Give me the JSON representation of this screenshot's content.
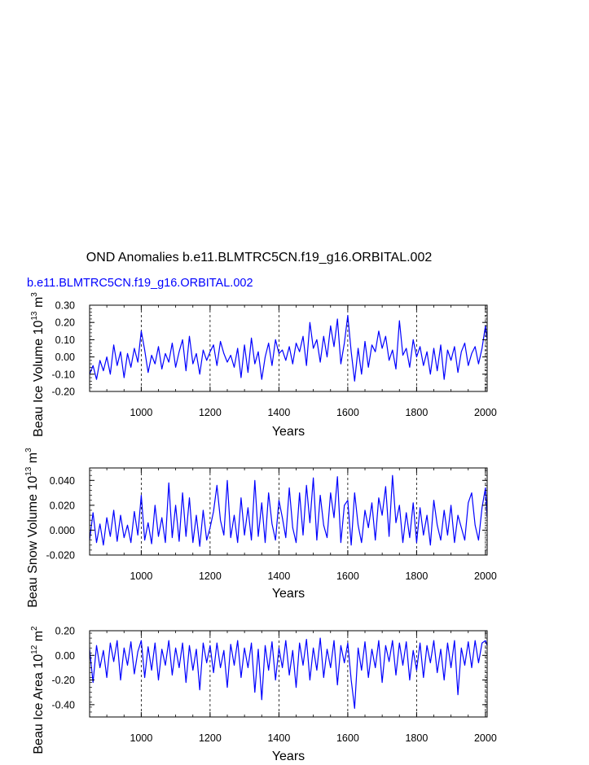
{
  "figure": {
    "title": "OND Anomalies b.e11.BLMTRC5CN.f19_g16.ORBITAL.002",
    "subtitle": "b.e11.BLMTRC5CN.f19_g16.ORBITAL.002",
    "subtitle_color": "#0000ff",
    "series_color": "#0000ff"
  },
  "chart_data": [
    {
      "type": "line",
      "title": "",
      "xlabel": "Years",
      "ylabel": "Beau Ice Volume 10^13 m^3",
      "ylabel_base": "Beau Ice Volume 10",
      "ylabel_exp": "13",
      "ylabel_unit": "m",
      "ylabel_unit_exp": "3",
      "xlim": [
        850,
        2005
      ],
      "ylim": [
        -0.2,
        0.3
      ],
      "xticks": [
        1000,
        1200,
        1400,
        1600,
        1800,
        2000
      ],
      "xtick_labels": [
        "1000",
        "1200",
        "1400",
        "1600",
        "1800",
        "2000"
      ],
      "yticks": [
        -0.2,
        -0.1,
        0.0,
        0.1,
        0.2,
        0.3
      ],
      "ytick_labels": [
        "-0.20",
        "-0.10",
        "0.00",
        "0.10",
        "0.20",
        "0.30"
      ],
      "grid": "dashed vertical lines at major x ticks",
      "series": [
        {
          "x": [
            850,
            860,
            870,
            880,
            890,
            900,
            910,
            920,
            930,
            940,
            950,
            960,
            970,
            980,
            990,
            1000,
            1010,
            1020,
            1030,
            1040,
            1050,
            1060,
            1070,
            1080,
            1090,
            1100,
            1110,
            1120,
            1130,
            1140,
            1150,
            1160,
            1170,
            1180,
            1190,
            1200,
            1210,
            1220,
            1230,
            1240,
            1250,
            1260,
            1270,
            1280,
            1290,
            1300,
            1310,
            1320,
            1330,
            1340,
            1350,
            1360,
            1370,
            1380,
            1390,
            1400,
            1410,
            1420,
            1430,
            1440,
            1450,
            1460,
            1470,
            1480,
            1490,
            1500,
            1510,
            1520,
            1530,
            1540,
            1550,
            1560,
            1570,
            1580,
            1590,
            1600,
            1610,
            1620,
            1630,
            1640,
            1650,
            1660,
            1670,
            1680,
            1690,
            1700,
            1710,
            1720,
            1730,
            1740,
            1750,
            1760,
            1770,
            1780,
            1790,
            1800,
            1810,
            1820,
            1830,
            1840,
            1850,
            1860,
            1870,
            1880,
            1890,
            1900,
            1910,
            1920,
            1930,
            1940,
            1950,
            1960,
            1970,
            1980,
            1990,
            2000,
            2005
          ],
          "y": [
            -0.1,
            -0.05,
            -0.13,
            -0.02,
            -0.08,
            0.0,
            -0.1,
            0.07,
            -0.05,
            0.03,
            -0.12,
            0.02,
            -0.06,
            0.05,
            -0.03,
            0.15,
            0.04,
            -0.09,
            0.01,
            -0.04,
            0.06,
            -0.07,
            0.02,
            -0.03,
            0.08,
            -0.06,
            0.03,
            0.1,
            -0.08,
            0.12,
            -0.04,
            0.02,
            -0.1,
            0.04,
            -0.02,
            0.03,
            0.07,
            -0.05,
            0.09,
            0.02,
            -0.03,
            0.01,
            -0.06,
            0.05,
            -0.12,
            0.07,
            -0.09,
            0.11,
            -0.04,
            0.03,
            -0.13,
            0.0,
            0.08,
            -0.05,
            0.1,
            0.02,
            0.04,
            -0.02,
            0.06,
            -0.04,
            0.08,
            0.03,
            0.12,
            -0.05,
            0.2,
            0.05,
            0.1,
            -0.03,
            0.12,
            0.0,
            0.18,
            0.06,
            0.22,
            -0.04,
            0.08,
            0.24,
            0.03,
            -0.14,
            0.05,
            -0.1,
            0.09,
            -0.06,
            0.07,
            0.03,
            0.15,
            0.05,
            0.12,
            -0.02,
            0.04,
            -0.07,
            0.21,
            0.01,
            0.05,
            -0.06,
            0.1,
            0.0,
            0.06,
            -0.05,
            0.03,
            -0.1,
            0.05,
            -0.08,
            0.07,
            -0.13,
            0.04,
            -0.02,
            0.06,
            -0.09,
            0.03,
            0.08,
            -0.05,
            0.02,
            0.06,
            -0.04,
            0.05,
            0.18,
            0.1
          ]
        }
      ]
    },
    {
      "type": "line",
      "title": "",
      "xlabel": "Years",
      "ylabel": "Beau Snow Volume 10^13 m^3",
      "ylabel_base": "Beau Snow Volume 10",
      "ylabel_exp": "13",
      "ylabel_unit": "m",
      "ylabel_unit_exp": "3",
      "xlim": [
        850,
        2005
      ],
      "ylim": [
        -0.02,
        0.05
      ],
      "xticks": [
        1000,
        1200,
        1400,
        1600,
        1800,
        2000
      ],
      "xtick_labels": [
        "1000",
        "1200",
        "1400",
        "1600",
        "1800",
        "2000"
      ],
      "yticks": [
        -0.02,
        0.0,
        0.02,
        0.04
      ],
      "ytick_labels": [
        "-0.020",
        "0.000",
        "0.020",
        "0.040"
      ],
      "grid": "dashed vertical lines at major x ticks",
      "series": [
        {
          "x": [
            850,
            860,
            870,
            880,
            890,
            900,
            910,
            920,
            930,
            940,
            950,
            960,
            970,
            980,
            990,
            1000,
            1010,
            1020,
            1030,
            1040,
            1050,
            1060,
            1070,
            1080,
            1090,
            1100,
            1110,
            1120,
            1130,
            1140,
            1150,
            1160,
            1170,
            1180,
            1190,
            1200,
            1210,
            1220,
            1230,
            1240,
            1250,
            1260,
            1270,
            1280,
            1290,
            1300,
            1310,
            1320,
            1330,
            1340,
            1350,
            1360,
            1370,
            1380,
            1390,
            1400,
            1410,
            1420,
            1430,
            1440,
            1450,
            1460,
            1470,
            1480,
            1490,
            1500,
            1510,
            1520,
            1530,
            1540,
            1550,
            1560,
            1570,
            1580,
            1590,
            1600,
            1610,
            1620,
            1630,
            1640,
            1650,
            1660,
            1670,
            1680,
            1690,
            1700,
            1710,
            1720,
            1730,
            1740,
            1750,
            1760,
            1770,
            1780,
            1790,
            1800,
            1810,
            1820,
            1830,
            1840,
            1850,
            1860,
            1870,
            1880,
            1890,
            1900,
            1910,
            1920,
            1930,
            1940,
            1950,
            1960,
            1970,
            1980,
            1990,
            2000,
            2005
          ],
          "y": [
            -0.008,
            0.014,
            -0.01,
            0.005,
            -0.012,
            0.01,
            -0.005,
            0.016,
            -0.009,
            0.012,
            -0.006,
            0.004,
            -0.01,
            0.015,
            -0.004,
            0.028,
            -0.008,
            0.006,
            -0.011,
            0.02,
            -0.005,
            0.01,
            -0.01,
            0.038,
            -0.006,
            0.02,
            -0.009,
            0.03,
            -0.005,
            0.026,
            -0.01,
            0.012,
            -0.013,
            0.016,
            -0.008,
            0.002,
            0.015,
            0.036,
            0.008,
            -0.004,
            0.04,
            -0.006,
            0.012,
            -0.01,
            0.026,
            -0.004,
            0.018,
            -0.008,
            0.04,
            -0.005,
            0.022,
            -0.01,
            0.03,
            0.005,
            -0.008,
            0.024,
            0.01,
            -0.006,
            0.034,
            0.002,
            -0.01,
            0.03,
            -0.004,
            0.036,
            0.006,
            0.042,
            -0.008,
            0.028,
            0.004,
            -0.006,
            0.03,
            0.01,
            0.043,
            -0.01,
            0.02,
            0.024,
            -0.012,
            0.03,
            0.004,
            -0.01,
            0.016,
            0.002,
            0.022,
            -0.008,
            0.026,
            0.012,
            0.035,
            -0.005,
            0.044,
            0.006,
            0.02,
            -0.01,
            0.014,
            -0.006,
            0.022,
            -0.01,
            0.018,
            -0.004,
            0.012,
            -0.012,
            0.024,
            0.004,
            -0.008,
            0.016,
            -0.004,
            0.02,
            -0.01,
            0.012,
            0.002,
            -0.008,
            0.022,
            0.03,
            0.004,
            -0.008,
            0.018,
            0.034,
            0.01
          ]
        }
      ]
    },
    {
      "type": "line",
      "title": "",
      "xlabel": "Years",
      "ylabel": "Beau Ice Area 10^12 m^2",
      "ylabel_base": "Beau Ice Area 10",
      "ylabel_exp": "12",
      "ylabel_unit": "m",
      "ylabel_unit_exp": "2",
      "xlim": [
        850,
        2005
      ],
      "ylim": [
        -0.5,
        0.2
      ],
      "xticks": [
        1000,
        1200,
        1400,
        1600,
        1800,
        2000
      ],
      "xtick_labels": [
        "1000",
        "1200",
        "1400",
        "1600",
        "1800",
        "2000"
      ],
      "yticks": [
        -0.4,
        -0.2,
        0.0,
        0.2
      ],
      "ytick_labels": [
        "-0.40",
        "-0.20",
        "0.00",
        "0.20"
      ],
      "grid": "dashed vertical lines at major x ticks",
      "series": [
        {
          "x": [
            850,
            860,
            870,
            880,
            890,
            900,
            910,
            920,
            930,
            940,
            950,
            960,
            970,
            980,
            990,
            1000,
            1010,
            1020,
            1030,
            1040,
            1050,
            1060,
            1070,
            1080,
            1090,
            1100,
            1110,
            1120,
            1130,
            1140,
            1150,
            1160,
            1170,
            1180,
            1190,
            1200,
            1210,
            1220,
            1230,
            1240,
            1250,
            1260,
            1270,
            1280,
            1290,
            1300,
            1310,
            1320,
            1330,
            1340,
            1350,
            1360,
            1370,
            1380,
            1390,
            1400,
            1410,
            1420,
            1430,
            1440,
            1450,
            1460,
            1470,
            1480,
            1490,
            1500,
            1510,
            1520,
            1530,
            1540,
            1550,
            1560,
            1570,
            1580,
            1590,
            1600,
            1610,
            1620,
            1630,
            1640,
            1650,
            1660,
            1670,
            1680,
            1690,
            1700,
            1710,
            1720,
            1730,
            1740,
            1750,
            1760,
            1770,
            1780,
            1790,
            1800,
            1810,
            1820,
            1830,
            1840,
            1850,
            1860,
            1870,
            1880,
            1890,
            1900,
            1910,
            1920,
            1930,
            1940,
            1950,
            1960,
            1970,
            1980,
            1990,
            2000,
            2005
          ],
          "y": [
            0.05,
            -0.22,
            0.08,
            -0.1,
            0.04,
            -0.18,
            0.1,
            -0.05,
            0.12,
            -0.2,
            0.06,
            -0.08,
            0.11,
            -0.15,
            0.03,
            0.12,
            -0.18,
            0.07,
            -0.12,
            0.1,
            -0.2,
            0.05,
            -0.08,
            0.12,
            -0.16,
            0.06,
            -0.1,
            0.1,
            -0.22,
            0.08,
            -0.12,
            0.05,
            -0.28,
            0.1,
            -0.06,
            0.08,
            -0.14,
            0.1,
            -0.1,
            0.04,
            -0.26,
            0.09,
            -0.08,
            0.12,
            -0.18,
            0.06,
            -0.1,
            0.1,
            -0.3,
            0.05,
            -0.36,
            0.08,
            -0.12,
            0.11,
            -0.2,
            0.06,
            -0.1,
            0.12,
            -0.16,
            0.04,
            -0.26,
            0.1,
            -0.08,
            0.13,
            -0.2,
            0.06,
            -0.12,
            0.14,
            -0.18,
            0.05,
            -0.1,
            0.12,
            -0.24,
            0.08,
            -0.06,
            0.1,
            -0.2,
            -0.43,
            0.06,
            -0.12,
            0.11,
            -0.18,
            0.05,
            -0.1,
            0.12,
            -0.22,
            0.08,
            -0.05,
            0.12,
            -0.16,
            0.1,
            -0.08,
            0.11,
            -0.2,
            0.04,
            -0.12,
            0.1,
            -0.18,
            0.08,
            -0.06,
            0.12,
            -0.14,
            0.05,
            -0.2,
            0.1,
            -0.1,
            0.12,
            -0.32,
            0.06,
            -0.08,
            0.11,
            -0.1,
            0.12,
            -0.06,
            0.1,
            0.12,
            0.08
          ]
        }
      ]
    }
  ]
}
